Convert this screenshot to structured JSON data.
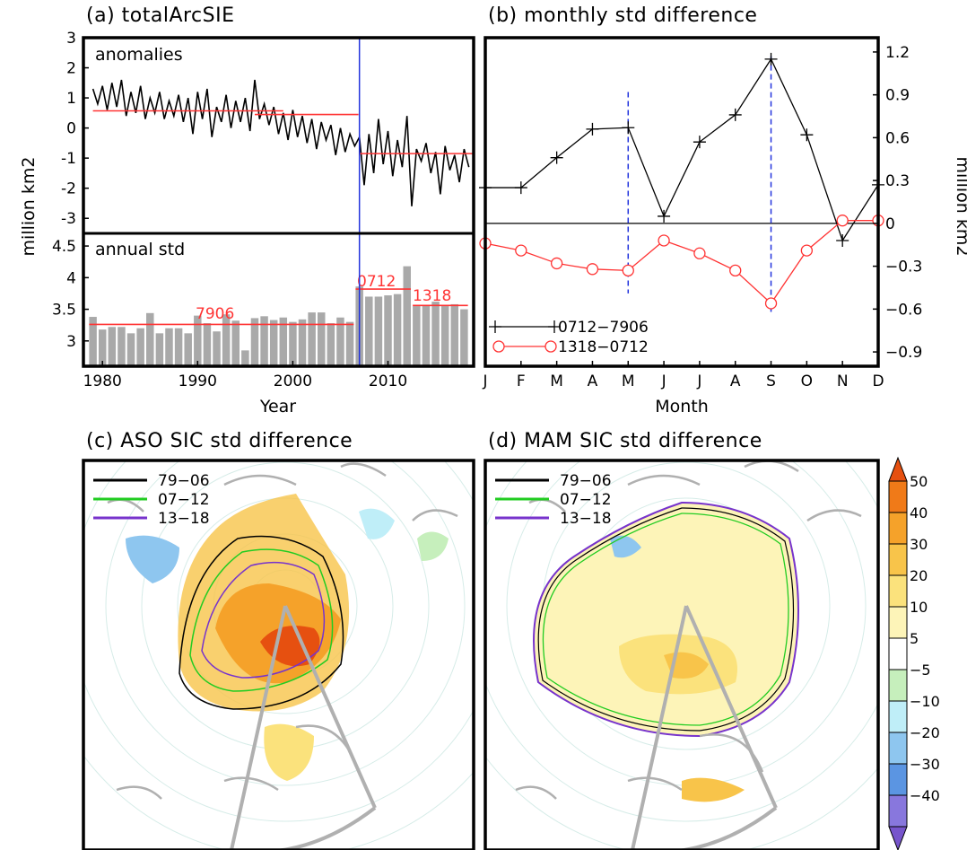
{
  "colors": {
    "bar": "#a9a9a9",
    "mean": "#ff3333",
    "vline": "#2233dd",
    "hollow": "#ff3333",
    "contour_a": "#000000",
    "contour_b": "#22cc22",
    "contour_c": "#7733cc",
    "land": "#b0b0b0"
  },
  "panel_a": {
    "title": "(a)  totalArcSIE",
    "ylabel": "million  km2",
    "xlabel": "Year",
    "top_label": "anomalies",
    "bottom_label": "annual  std",
    "mean_labels": [
      "7906",
      "0712",
      "1318"
    ]
  },
  "panel_b": {
    "title": "(b)  monthly  std  difference",
    "ylabel": "million  km2",
    "xlabel": "Month",
    "legend": [
      "0712−7906",
      "1318−0712"
    ]
  },
  "panel_c": {
    "title": "(c)  ASO  SIC  std  difference",
    "legend": [
      "79−06",
      "07−12",
      "13−18"
    ]
  },
  "panel_d": {
    "title": "(d)  MAM  SIC  std  difference",
    "legend": [
      "79−06",
      "07−12",
      "13−18"
    ]
  },
  "colorbar": {
    "labels": [
      "50",
      "40",
      "30",
      "20",
      "10",
      "5",
      "−5",
      "−10",
      "−20",
      "−30",
      "−40"
    ],
    "colors": [
      "#e65010",
      "#f07a18",
      "#f5a22a",
      "#f8c44a",
      "#fbe27c",
      "#fdf4b8",
      "#ffffff",
      "#c6efbc",
      "#bfeef8",
      "#8ec6ef",
      "#5b95e2",
      "#8877dd",
      "#7755cc"
    ]
  },
  "chart_data": [
    {
      "type": "line",
      "title": "(a)  totalArcSIE",
      "subtitle": "anomalies",
      "ylabel": "million  km2",
      "xlim": [
        1978,
        2019
      ],
      "ylim": [
        -3.5,
        3
      ],
      "yticks": [
        3,
        2,
        1,
        0,
        -1,
        -2,
        -3
      ],
      "markers": {
        "vertical_line_x": 2007
      },
      "period_means": [
        {
          "x": [
            1979,
            1999
          ],
          "y": 0.57
        },
        {
          "x": [
            1996,
            2006.9
          ],
          "y": 0.45
        },
        {
          "x": [
            2007,
            2019
          ],
          "y": -0.85
        }
      ],
      "series": [
        {
          "x": [
            1979,
            1979.5,
            1980,
            1980.5,
            1981,
            1981.5,
            1982,
            1982.5,
            1983,
            1983.5,
            1984,
            1984.5,
            1985,
            1985.5,
            1986,
            1986.5,
            1987,
            1987.5,
            1988,
            1988.5,
            1989,
            1989.5,
            1990,
            1990.5,
            1991,
            1991.5,
            1992,
            1992.5,
            1993,
            1993.5,
            1994,
            1994.5,
            1995,
            1995.5,
            1996,
            1996.5,
            1997,
            1997.5,
            1998,
            1998.5,
            1999,
            1999.5,
            2000,
            2000.5,
            2001,
            2001.5,
            2002,
            2002.5,
            2003,
            2003.5,
            2004,
            2004.5,
            2005,
            2005.5,
            2006,
            2006.5,
            2007,
            2007.5,
            2008,
            2008.5,
            2009,
            2009.5,
            2010,
            2010.5,
            2011,
            2011.5,
            2012,
            2012.5,
            2013,
            2013.5,
            2014,
            2014.5,
            2015,
            2015.5,
            2016,
            2016.5,
            2017,
            2017.5,
            2018,
            2018.5
          ],
          "y": [
            1.3,
            0.8,
            1.4,
            0.6,
            1.5,
            0.7,
            1.6,
            0.4,
            1.2,
            0.5,
            1.4,
            0.3,
            1.0,
            0.5,
            1.2,
            0.3,
            0.9,
            0.4,
            1.1,
            0.2,
            1.0,
            -0.2,
            1.2,
            0.3,
            1.3,
            -0.3,
            0.7,
            0.2,
            1.1,
            0.0,
            0.9,
            0.2,
            1.0,
            -0.1,
            1.6,
            0.3,
            0.8,
            0.1,
            0.7,
            -0.2,
            0.5,
            -0.4,
            0.6,
            -0.3,
            0.4,
            -0.5,
            0.3,
            -0.7,
            0.2,
            -0.4,
            0.1,
            -0.9,
            0.0,
            -0.8,
            -0.2,
            -0.6,
            -0.3,
            -1.9,
            -0.2,
            -1.5,
            0.3,
            -1.2,
            -0.1,
            -1.6,
            -0.4,
            -1.3,
            0.4,
            -2.6,
            -0.7,
            -1.1,
            -0.5,
            -1.5,
            -0.8,
            -2.2,
            -0.6,
            -1.4,
            -0.9,
            -1.8,
            -0.7,
            -1.3
          ]
        }
      ]
    },
    {
      "type": "bar",
      "subtitle": "annual  std",
      "xlabel": "Year",
      "ylabel": "million  km2",
      "xlim": [
        1978,
        2019
      ],
      "ylim": [
        2.6,
        4.7
      ],
      "yticks": [
        4.5,
        4,
        3.5,
        3
      ],
      "xticks": [
        1980,
        1990,
        2000,
        2010
      ],
      "period_means": [
        {
          "label": "7906",
          "x": [
            1979,
            2006
          ],
          "y": 3.26
        },
        {
          "label": "0712",
          "x": [
            2007,
            2012
          ],
          "y": 3.82
        },
        {
          "label": "1318",
          "x": [
            2013,
            2018
          ],
          "y": 3.56
        }
      ],
      "categories": [
        1979,
        1980,
        1981,
        1982,
        1983,
        1984,
        1985,
        1986,
        1987,
        1988,
        1989,
        1990,
        1991,
        1992,
        1993,
        1994,
        1995,
        1996,
        1997,
        1998,
        1999,
        2000,
        2001,
        2002,
        2003,
        2004,
        2005,
        2006,
        2007,
        2008,
        2009,
        2010,
        2011,
        2012,
        2013,
        2014,
        2015,
        2016,
        2017,
        2018
      ],
      "values": [
        3.38,
        3.18,
        3.22,
        3.22,
        3.12,
        3.2,
        3.44,
        3.12,
        3.2,
        3.2,
        3.12,
        3.4,
        3.28,
        3.15,
        3.42,
        3.32,
        2.85,
        3.36,
        3.39,
        3.33,
        3.37,
        3.3,
        3.34,
        3.45,
        3.45,
        3.28,
        3.37,
        3.3,
        3.86,
        3.7,
        3.7,
        3.72,
        3.74,
        4.18,
        3.55,
        3.56,
        3.62,
        3.55,
        3.58,
        3.5
      ]
    },
    {
      "type": "line",
      "title": "(b)  monthly  std  difference",
      "xlabel": "Month",
      "ylabel": "million  km2",
      "categories": [
        "J",
        "F",
        "M",
        "A",
        "M",
        "J",
        "J",
        "A",
        "S",
        "O",
        "N",
        "D"
      ],
      "ylim": [
        -1.0,
        1.3
      ],
      "yticks": [
        1.2,
        0.9,
        0.6,
        0.3,
        0,
        -0.3,
        -0.6,
        -0.9
      ],
      "dashed_markers": [
        "M",
        "S"
      ],
      "series": [
        {
          "name": "0712−7906",
          "marker": "plus",
          "values": [
            0.25,
            0.25,
            0.46,
            0.66,
            0.67,
            0.05,
            0.57,
            0.76,
            1.15,
            0.62,
            -0.12,
            0.27
          ]
        },
        {
          "name": "1318−0712",
          "marker": "circle",
          "values": [
            -0.14,
            -0.19,
            -0.28,
            -0.32,
            -0.33,
            -0.12,
            -0.21,
            -0.33,
            -0.56,
            -0.19,
            0.02,
            0.02
          ]
        }
      ]
    }
  ]
}
